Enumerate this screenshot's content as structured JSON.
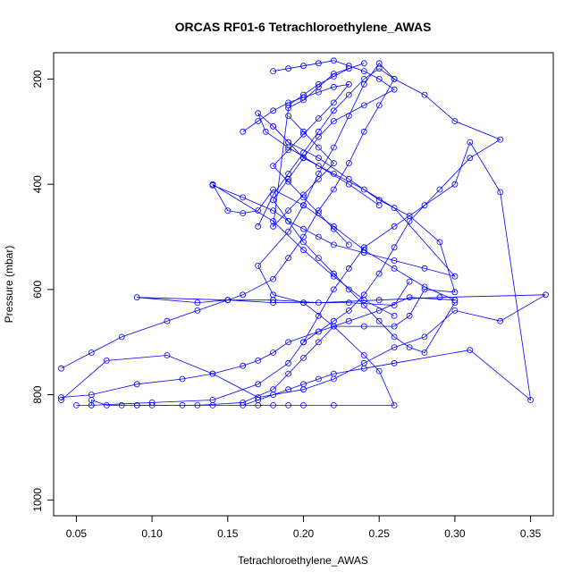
{
  "chart_data": {
    "type": "line",
    "title": "ORCAS RF01-6 Tetrachloroethylene_AWAS",
    "xlabel": "Tetrachloroethylene_AWAS",
    "ylabel": "Pressure (mbar)",
    "xlim": [
      0.035,
      0.365
    ],
    "ylim": [
      1030,
      150
    ],
    "y_reversed": true,
    "grid": false,
    "legend": "none",
    "x_ticks": [
      "0.05",
      "0.10",
      "0.15",
      "0.20",
      "0.25",
      "0.30",
      "0.35"
    ],
    "x_tick_values": [
      0.05,
      0.1,
      0.15,
      0.2,
      0.25,
      0.3,
      0.35
    ],
    "y_ticks": [
      "200",
      "400",
      "600",
      "800",
      "1000"
    ],
    "y_tick_values": [
      200,
      400,
      600,
      800,
      1000
    ],
    "color": "#0000ff",
    "series": [
      {
        "x": [
          0.05,
          0.06,
          0.06,
          0.07,
          0.08,
          0.09,
          0.1,
          0.12,
          0.14,
          0.17,
          0.18,
          0.19,
          0.2,
          0.22,
          0.26,
          0.25,
          0.24,
          0.22,
          0.2,
          0.18,
          0.17,
          0.19,
          0.2,
          0.21,
          0.22,
          0.23,
          0.24,
          0.25,
          0.26,
          0.28,
          0.3,
          0.33,
          0.31,
          0.29,
          0.27,
          0.26,
          0.25,
          0.24,
          0.23,
          0.22,
          0.21,
          0.2
        ],
        "y": [
          820,
          820,
          810,
          820,
          820,
          820,
          820,
          820,
          820,
          820,
          820,
          820,
          820,
          820,
          820,
          755,
          725,
          670,
          625,
          610,
          555,
          490,
          440,
          380,
          330,
          270,
          210,
          170,
          200,
          230,
          280,
          315,
          350,
          410,
          470,
          520,
          570,
          610,
          640,
          660,
          680,
          700
        ]
      },
      {
        "x": [
          0.04,
          0.07,
          0.11,
          0.14,
          0.17,
          0.2,
          0.22,
          0.24,
          0.26,
          0.28,
          0.3,
          0.33,
          0.36,
          0.29,
          0.25,
          0.21,
          0.18,
          0.15,
          0.13,
          0.09,
          0.15,
          0.18,
          0.2,
          0.23,
          0.26,
          0.27
        ],
        "y": [
          810,
          735,
          725,
          760,
          805,
          790,
          770,
          740,
          710,
          690,
          640,
          660,
          610,
          615,
          620,
          625,
          620,
          620,
          625,
          615,
          620,
          625,
          625,
          625,
          630,
          585
        ]
      },
      {
        "x": [
          0.04,
          0.06,
          0.09,
          0.12,
          0.14,
          0.16,
          0.17,
          0.18,
          0.19,
          0.21,
          0.23,
          0.25,
          0.27,
          0.3,
          0.28,
          0.26,
          0.24,
          0.22,
          0.2,
          0.18,
          0.17,
          0.16,
          0.15,
          0.14,
          0.18,
          0.2,
          0.22,
          0.24,
          0.26
        ],
        "y": [
          805,
          800,
          780,
          770,
          760,
          745,
          735,
          720,
          700,
          680,
          660,
          640,
          615,
          620,
          595,
          560,
          525,
          480,
          440,
          410,
          450,
          455,
          450,
          400,
          470,
          525,
          575,
          620,
          650
        ]
      },
      {
        "x": [
          0.04,
          0.06,
          0.08,
          0.11,
          0.13,
          0.16,
          0.18,
          0.19,
          0.2,
          0.21,
          0.22,
          0.23,
          0.24,
          0.25,
          0.26,
          0.25,
          0.24,
          0.23,
          0.22,
          0.21,
          0.2,
          0.19,
          0.18,
          0.17
        ],
        "y": [
          750,
          720,
          690,
          660,
          640,
          610,
          580,
          540,
          500,
          450,
          410,
          360,
          300,
          250,
          200,
          180,
          200,
          230,
          260,
          300,
          340,
          380,
          420,
          480
        ]
      },
      {
        "x": [
          0.06,
          0.1,
          0.14,
          0.17,
          0.19,
          0.2,
          0.21,
          0.22,
          0.23,
          0.24,
          0.26,
          0.28,
          0.3,
          0.31,
          0.33,
          0.35,
          0.31,
          0.26,
          0.24,
          0.22,
          0.21,
          0.2,
          0.19,
          0.18,
          0.17,
          0.16
        ],
        "y": [
          820,
          815,
          810,
          780,
          740,
          700,
          650,
          600,
          560,
          520,
          480,
          440,
          400,
          320,
          415,
          810,
          715,
          740,
          750,
          760,
          770,
          780,
          790,
          800,
          810,
          820
        ]
      },
      {
        "x": [
          0.09,
          0.13,
          0.16,
          0.18,
          0.19,
          0.2,
          0.21,
          0.22,
          0.24,
          0.26,
          0.27,
          0.28,
          0.3,
          0.29,
          0.27,
          0.25,
          0.23,
          0.21,
          0.19,
          0.18,
          0.17,
          0.175,
          0.19,
          0.21,
          0.23,
          0.25
        ],
        "y": [
          820,
          820,
          815,
          790,
          760,
          730,
          700,
          670,
          670,
          670,
          650,
          600,
          605,
          510,
          460,
          430,
          390,
          350,
          320,
          290,
          265,
          300,
          330,
          365,
          400,
          440
        ]
      },
      {
        "x": [
          0.18,
          0.19,
          0.2,
          0.21,
          0.22,
          0.23,
          0.24,
          0.25,
          0.26,
          0.24,
          0.22,
          0.21,
          0.2,
          0.19,
          0.18,
          0.19,
          0.2,
          0.21,
          0.22,
          0.23,
          0.24,
          0.25,
          0.26,
          0.27,
          0.28,
          0.3
        ],
        "y": [
          185,
          180,
          175,
          170,
          165,
          175,
          185,
          200,
          220,
          250,
          280,
          310,
          350,
          390,
          430,
          470,
          510,
          540,
          570,
          600,
          630,
          660,
          690,
          710,
          720,
          625
        ]
      },
      {
        "x": [
          0.19,
          0.2,
          0.21,
          0.22,
          0.23,
          0.24,
          0.22,
          0.21,
          0.2,
          0.19,
          0.18,
          0.19,
          0.2,
          0.21,
          0.22,
          0.21,
          0.2,
          0.19
        ],
        "y": [
          250,
          230,
          210,
          195,
          180,
          170,
          190,
          215,
          240,
          255,
          480,
          450,
          420,
          390,
          360,
          330,
          300,
          270
        ]
      },
      {
        "x": [
          0.16,
          0.17,
          0.18,
          0.19,
          0.2,
          0.21,
          0.22,
          0.23,
          0.22,
          0.21,
          0.2,
          0.19,
          0.18,
          0.19,
          0.2,
          0.21,
          0.22,
          0.23
        ],
        "y": [
          300,
          280,
          260,
          245,
          235,
          225,
          215,
          210,
          245,
          275,
          305,
          335,
          365,
          395,
          425,
          455,
          485,
          515
        ]
      },
      {
        "x": [
          0.14,
          0.16,
          0.18,
          0.19,
          0.2,
          0.21,
          0.22,
          0.24,
          0.26,
          0.28,
          0.3,
          0.26,
          0.24,
          0.22,
          0.2,
          0.19,
          0.18
        ],
        "y": [
          402,
          425,
          450,
          470,
          485,
          500,
          515,
          530,
          545,
          560,
          575,
          445,
          410,
          380,
          350,
          320,
          290
        ]
      }
    ]
  }
}
